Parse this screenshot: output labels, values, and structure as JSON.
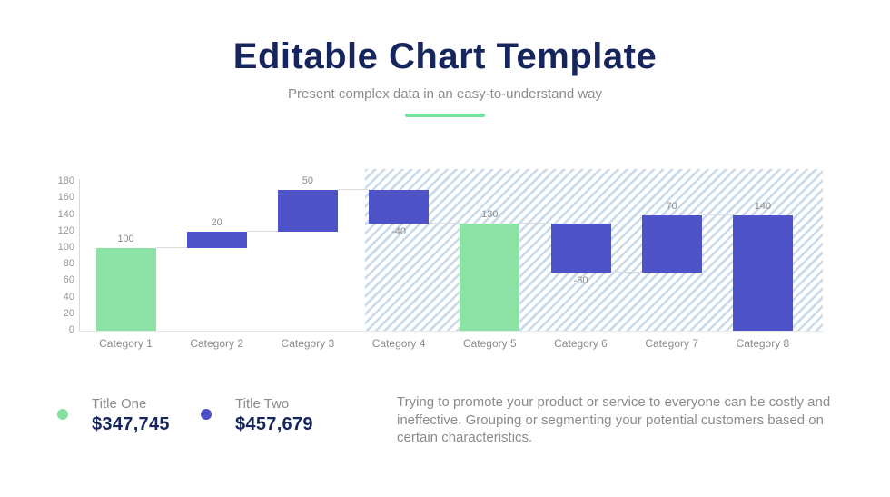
{
  "slide": {
    "title": "Editable Chart Template",
    "subtitle": "Present complex data in an easy-to-understand way"
  },
  "chart_data": {
    "type": "bar",
    "subtype": "waterfall",
    "title": "",
    "xlabel": "",
    "ylabel": "",
    "grid": false,
    "y_axis": {
      "min": 0,
      "max": 180,
      "step": 20
    },
    "categories": [
      "Category 1",
      "Category 2",
      "Category 3",
      "Category 4",
      "Category 5",
      "Category 6",
      "Category 7",
      "Category 8"
    ],
    "values": [
      100,
      20,
      50,
      -40,
      130,
      -60,
      70,
      140
    ],
    "bars": [
      {
        "category": "Category 1",
        "label": "100",
        "start": 0,
        "end": 100,
        "color": "green"
      },
      {
        "category": "Category 2",
        "label": "20",
        "start": 100,
        "end": 120,
        "color": "blue"
      },
      {
        "category": "Category 3",
        "label": "50",
        "start": 120,
        "end": 170,
        "color": "blue"
      },
      {
        "category": "Category 4",
        "label": "-40",
        "start": 170,
        "end": 130,
        "color": "blue"
      },
      {
        "category": "Category 5",
        "label": "130",
        "start": 0,
        "end": 130,
        "color": "green"
      },
      {
        "category": "Category 6",
        "label": "-60",
        "start": 130,
        "end": 70,
        "color": "blue"
      },
      {
        "category": "Category 7",
        "label": "70",
        "start": 70,
        "end": 140,
        "color": "blue"
      },
      {
        "category": "Category 8",
        "label": "140",
        "start": 0,
        "end": 140,
        "color": "blue"
      }
    ],
    "highlight_region": {
      "style": "diagonal-hatch",
      "covers_categories": [
        "Category 4",
        "Category 5",
        "Category 6",
        "Category 7",
        "Category 8"
      ]
    },
    "legend_position": "bottom-left"
  },
  "legend": {
    "items": [
      {
        "label": "Title One",
        "value": "$347,745",
        "color": "#82E09E"
      },
      {
        "label": "Title Two",
        "value": "$457,679",
        "color": "#4A50C6"
      }
    ]
  },
  "description": "Trying to promote your product or service to everyone can be costly and ineffective. Grouping or segmenting your potential customers based on certain characteristics.",
  "colors": {
    "accent_green": "#8BE2A4",
    "accent_blue": "#4E54C8",
    "navy": "#16265C",
    "gray_text": "#8C8C8C",
    "hatch_blue": "#C9DAEA",
    "axis_line": "#D9D9D9",
    "underline_green": "#6FE49A"
  }
}
